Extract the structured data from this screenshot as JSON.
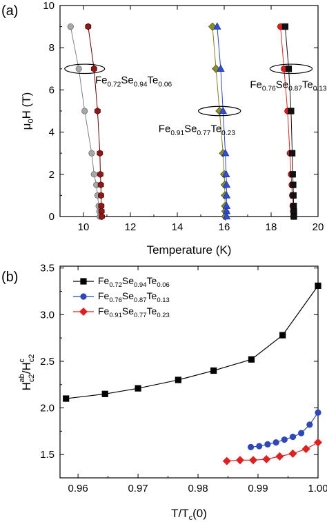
{
  "chart_data": [
    {
      "panel_label": "(a)",
      "type": "scatter",
      "xlabel": "Temperature (K)",
      "ylabel_main": "μ",
      "ylabel_sub": "0",
      "ylabel_tail": "H (T)",
      "xlim": [
        9,
        20
      ],
      "ylim": [
        0,
        10
      ],
      "xticks": [
        10,
        12,
        14,
        16,
        18,
        20
      ],
      "yticks": [
        0,
        2,
        4,
        6,
        8,
        10
      ],
      "annotations": [
        {
          "id": "a1",
          "parts": [
            [
              "Fe",
              ""
            ],
            [
              "0.72",
              "sub"
            ],
            [
              "Se",
              ""
            ],
            [
              "0.94",
              "sub"
            ],
            [
              "Te",
              ""
            ],
            [
              "0.06",
              "sub"
            ]
          ],
          "x": 10.5,
          "y": 6.3,
          "ellipse": {
            "x": 10.05,
            "y": 7,
            "rx": 0.85,
            "ry": 0.22
          }
        },
        {
          "id": "a2",
          "parts": [
            [
              "Fe",
              ""
            ],
            [
              "0.76",
              "sub"
            ],
            [
              "Se",
              ""
            ],
            [
              "0.87",
              "sub"
            ],
            [
              "Te",
              ""
            ],
            [
              "0.13",
              "sub"
            ]
          ],
          "x": 17.1,
          "y": 6.1,
          "ellipse": {
            "x": 18.85,
            "y": 7,
            "rx": 0.9,
            "ry": 0.22
          }
        },
        {
          "id": "a3",
          "parts": [
            [
              "Fe",
              ""
            ],
            [
              "0.91",
              "sub"
            ],
            [
              "Se",
              ""
            ],
            [
              "0.77",
              "sub"
            ],
            [
              "Te",
              ""
            ],
            [
              "0.23",
              "sub"
            ]
          ],
          "x": 13.2,
          "y": 4.0,
          "ellipse": {
            "x": 15.8,
            "y": 5,
            "rx": 0.9,
            "ry": 0.22
          }
        }
      ],
      "series": [
        {
          "marker": "circle",
          "color": "#a8a8a8",
          "stroke": "#6e6e6e",
          "line": "#808080",
          "x": [
            9.45,
            9.8,
            10.05,
            10.35,
            10.45,
            10.55,
            10.6,
            10.65,
            10.68,
            10.7
          ],
          "y": [
            9,
            7,
            5,
            3,
            2,
            1.5,
            1,
            0.5,
            0.25,
            0
          ]
        },
        {
          "marker": "hexagon",
          "color": "#8b1a1a",
          "stroke": "#5a0000",
          "line": "#5a0000",
          "x": [
            10.2,
            10.45,
            10.6,
            10.7,
            10.72,
            10.74,
            10.75,
            10.76,
            10.77,
            10.78
          ],
          "y": [
            9,
            7,
            5,
            3,
            2,
            1.5,
            1,
            0.5,
            0.25,
            0
          ]
        },
        {
          "marker": "diamond",
          "color": "#8c8c28",
          "stroke": "#555510",
          "line": "#808020",
          "x": [
            15.5,
            15.65,
            15.8,
            15.95,
            16.0,
            16.02,
            16.03,
            16.04,
            16.05,
            16.05
          ],
          "y": [
            9,
            7,
            5,
            3,
            2,
            1.5,
            1,
            0.5,
            0.25,
            0
          ]
        },
        {
          "marker": "triangle",
          "color": "#2f4fd8",
          "stroke": "#1a2f9a",
          "line": "#2a45c8",
          "x": [
            15.7,
            15.85,
            15.95,
            16.05,
            16.08,
            16.1,
            16.1,
            16.1,
            16.1,
            16.1
          ],
          "y": [
            9,
            7,
            5,
            3,
            2,
            1.5,
            1,
            0.5,
            0.25,
            0
          ]
        },
        {
          "marker": "circle",
          "color": "#e02020",
          "stroke": "#9a0000",
          "line": "#e02020",
          "x": [
            18.4,
            18.55,
            18.7,
            18.8,
            18.85,
            18.88,
            18.9,
            18.92,
            18.94,
            18.95
          ],
          "y": [
            9,
            7,
            5,
            3,
            2,
            1.5,
            1,
            0.5,
            0.25,
            0
          ]
        },
        {
          "marker": "square",
          "color": "#111111",
          "stroke": "#000000",
          "line": "#111111",
          "x": [
            18.6,
            18.75,
            18.85,
            18.9,
            18.92,
            18.94,
            18.95,
            18.96,
            18.97,
            18.97
          ],
          "y": [
            9,
            7,
            5,
            3,
            2,
            1.5,
            1,
            0.5,
            0.25,
            0
          ]
        }
      ]
    },
    {
      "panel_label": "(b)",
      "type": "line",
      "xlabel_main": "T/T",
      "xlabel_sub": "c",
      "xlabel_tail": "(0)",
      "ylabel": "H",
      "ylabel_sub1": "c2",
      "ylabel_sup1": "ab",
      "ylabel_mid": "/H",
      "ylabel_sub2": "c2",
      "ylabel_sup2": "c",
      "xlim": [
        0.957,
        1.0
      ],
      "ylim": [
        1.25,
        3.52
      ],
      "xticks": [
        "0.96",
        "0.97",
        "0.98",
        "0.99",
        "1.00"
      ],
      "yticks": [
        "1.5",
        "2.0",
        "2.5",
        "3.0",
        "3.5"
      ],
      "legend_position": "top-left",
      "series": [
        {
          "name_parts": [
            [
              "Fe",
              ""
            ],
            [
              "0.72",
              "sub"
            ],
            [
              "Se",
              ""
            ],
            [
              "0.94",
              "sub"
            ],
            [
              "Te",
              ""
            ],
            [
              "0.06",
              "sub"
            ]
          ],
          "marker": "square",
          "color": "#000000",
          "x": [
            0.958,
            0.9645,
            0.97,
            0.9767,
            0.9826,
            0.9889,
            0.9941,
            1.0
          ],
          "y": [
            2.1,
            2.15,
            2.21,
            2.3,
            2.4,
            2.52,
            2.78,
            3.31
          ]
        },
        {
          "name_parts": [
            [
              "Fe",
              ""
            ],
            [
              "0.76",
              "sub"
            ],
            [
              "Se",
              ""
            ],
            [
              "0.87",
              "sub"
            ],
            [
              "Te",
              ""
            ],
            [
              "0.13",
              "sub"
            ]
          ],
          "marker": "circle",
          "color": "#2f47b8",
          "x": [
            0.9888,
            0.9902,
            0.9916,
            0.993,
            0.9944,
            0.9958,
            0.9972,
            0.9986,
            1.0
          ],
          "y": [
            1.58,
            1.59,
            1.61,
            1.63,
            1.66,
            1.69,
            1.73,
            1.82,
            1.95
          ]
        },
        {
          "name_parts": [
            [
              "Fe",
              ""
            ],
            [
              "0.91",
              "sub"
            ],
            [
              "Se",
              ""
            ],
            [
              "0.77",
              "sub"
            ],
            [
              "Te",
              ""
            ],
            [
              "0.23",
              "sub"
            ]
          ],
          "marker": "diamond",
          "color": "#e02020",
          "x": [
            0.9848,
            0.987,
            0.9892,
            0.9914,
            0.9936,
            0.9958,
            0.998,
            1.0
          ],
          "y": [
            1.43,
            1.44,
            1.44,
            1.45,
            1.48,
            1.51,
            1.56,
            1.63
          ]
        }
      ]
    }
  ]
}
